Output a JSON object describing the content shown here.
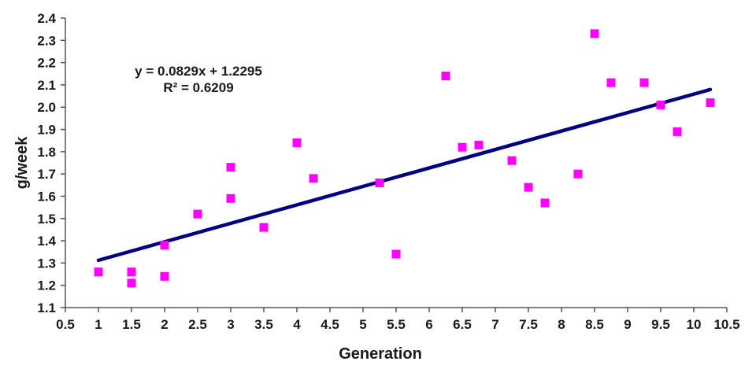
{
  "chart_data": {
    "type": "scatter",
    "title": "",
    "xlabel": "Generation",
    "ylabel": "g/week",
    "xlim": [
      0.5,
      10.5
    ],
    "ylim": [
      1.1,
      2.4
    ],
    "x_ticks": [
      "0.5",
      "1",
      "1.5",
      "2",
      "2.5",
      "3",
      "3.5",
      "4",
      "4.5",
      "5",
      "5.5",
      "6",
      "6.5",
      "7",
      "7.5",
      "8",
      "8.5",
      "9",
      "9.5",
      "10",
      "10.5"
    ],
    "y_ticks": [
      "1.1",
      "1.2",
      "1.3",
      "1.4",
      "1.5",
      "1.6",
      "1.7",
      "1.8",
      "1.9",
      "2.0",
      "2.1",
      "2.2",
      "2.3",
      "2.4"
    ],
    "grid": false,
    "legend": "none",
    "series": [
      {
        "name": "g/week",
        "marker": "square",
        "color": "#ff00ff",
        "points": [
          {
            "x": 1,
            "y": 1.26
          },
          {
            "x": 1.5,
            "y": 1.26
          },
          {
            "x": 1.5,
            "y": 1.21
          },
          {
            "x": 2,
            "y": 1.38
          },
          {
            "x": 2,
            "y": 1.24
          },
          {
            "x": 2.5,
            "y": 1.52
          },
          {
            "x": 3,
            "y": 1.73
          },
          {
            "x": 3,
            "y": 1.59
          },
          {
            "x": 3.5,
            "y": 1.46
          },
          {
            "x": 4,
            "y": 1.84
          },
          {
            "x": 4.25,
            "y": 1.68
          },
          {
            "x": 5.25,
            "y": 1.66
          },
          {
            "x": 5.5,
            "y": 1.34
          },
          {
            "x": 6.25,
            "y": 2.14
          },
          {
            "x": 6.5,
            "y": 1.82
          },
          {
            "x": 6.75,
            "y": 1.83
          },
          {
            "x": 7.25,
            "y": 1.76
          },
          {
            "x": 7.5,
            "y": 1.64
          },
          {
            "x": 7.75,
            "y": 1.57
          },
          {
            "x": 8.25,
            "y": 1.7
          },
          {
            "x": 8.5,
            "y": 2.33
          },
          {
            "x": 8.75,
            "y": 2.11
          },
          {
            "x": 9.25,
            "y": 2.11
          },
          {
            "x": 9.5,
            "y": 2.01
          },
          {
            "x": 9.75,
            "y": 1.89
          },
          {
            "x": 10.25,
            "y": 2.02
          }
        ]
      }
    ],
    "trendline": {
      "type": "linear",
      "slope": 0.0829,
      "intercept": 1.2295,
      "x_range": [
        1,
        10.25
      ],
      "color": "#000080"
    },
    "annotations": {
      "equation": "y = 0.0829x + 1.2295",
      "r_squared": "R² = 0.6209"
    }
  }
}
